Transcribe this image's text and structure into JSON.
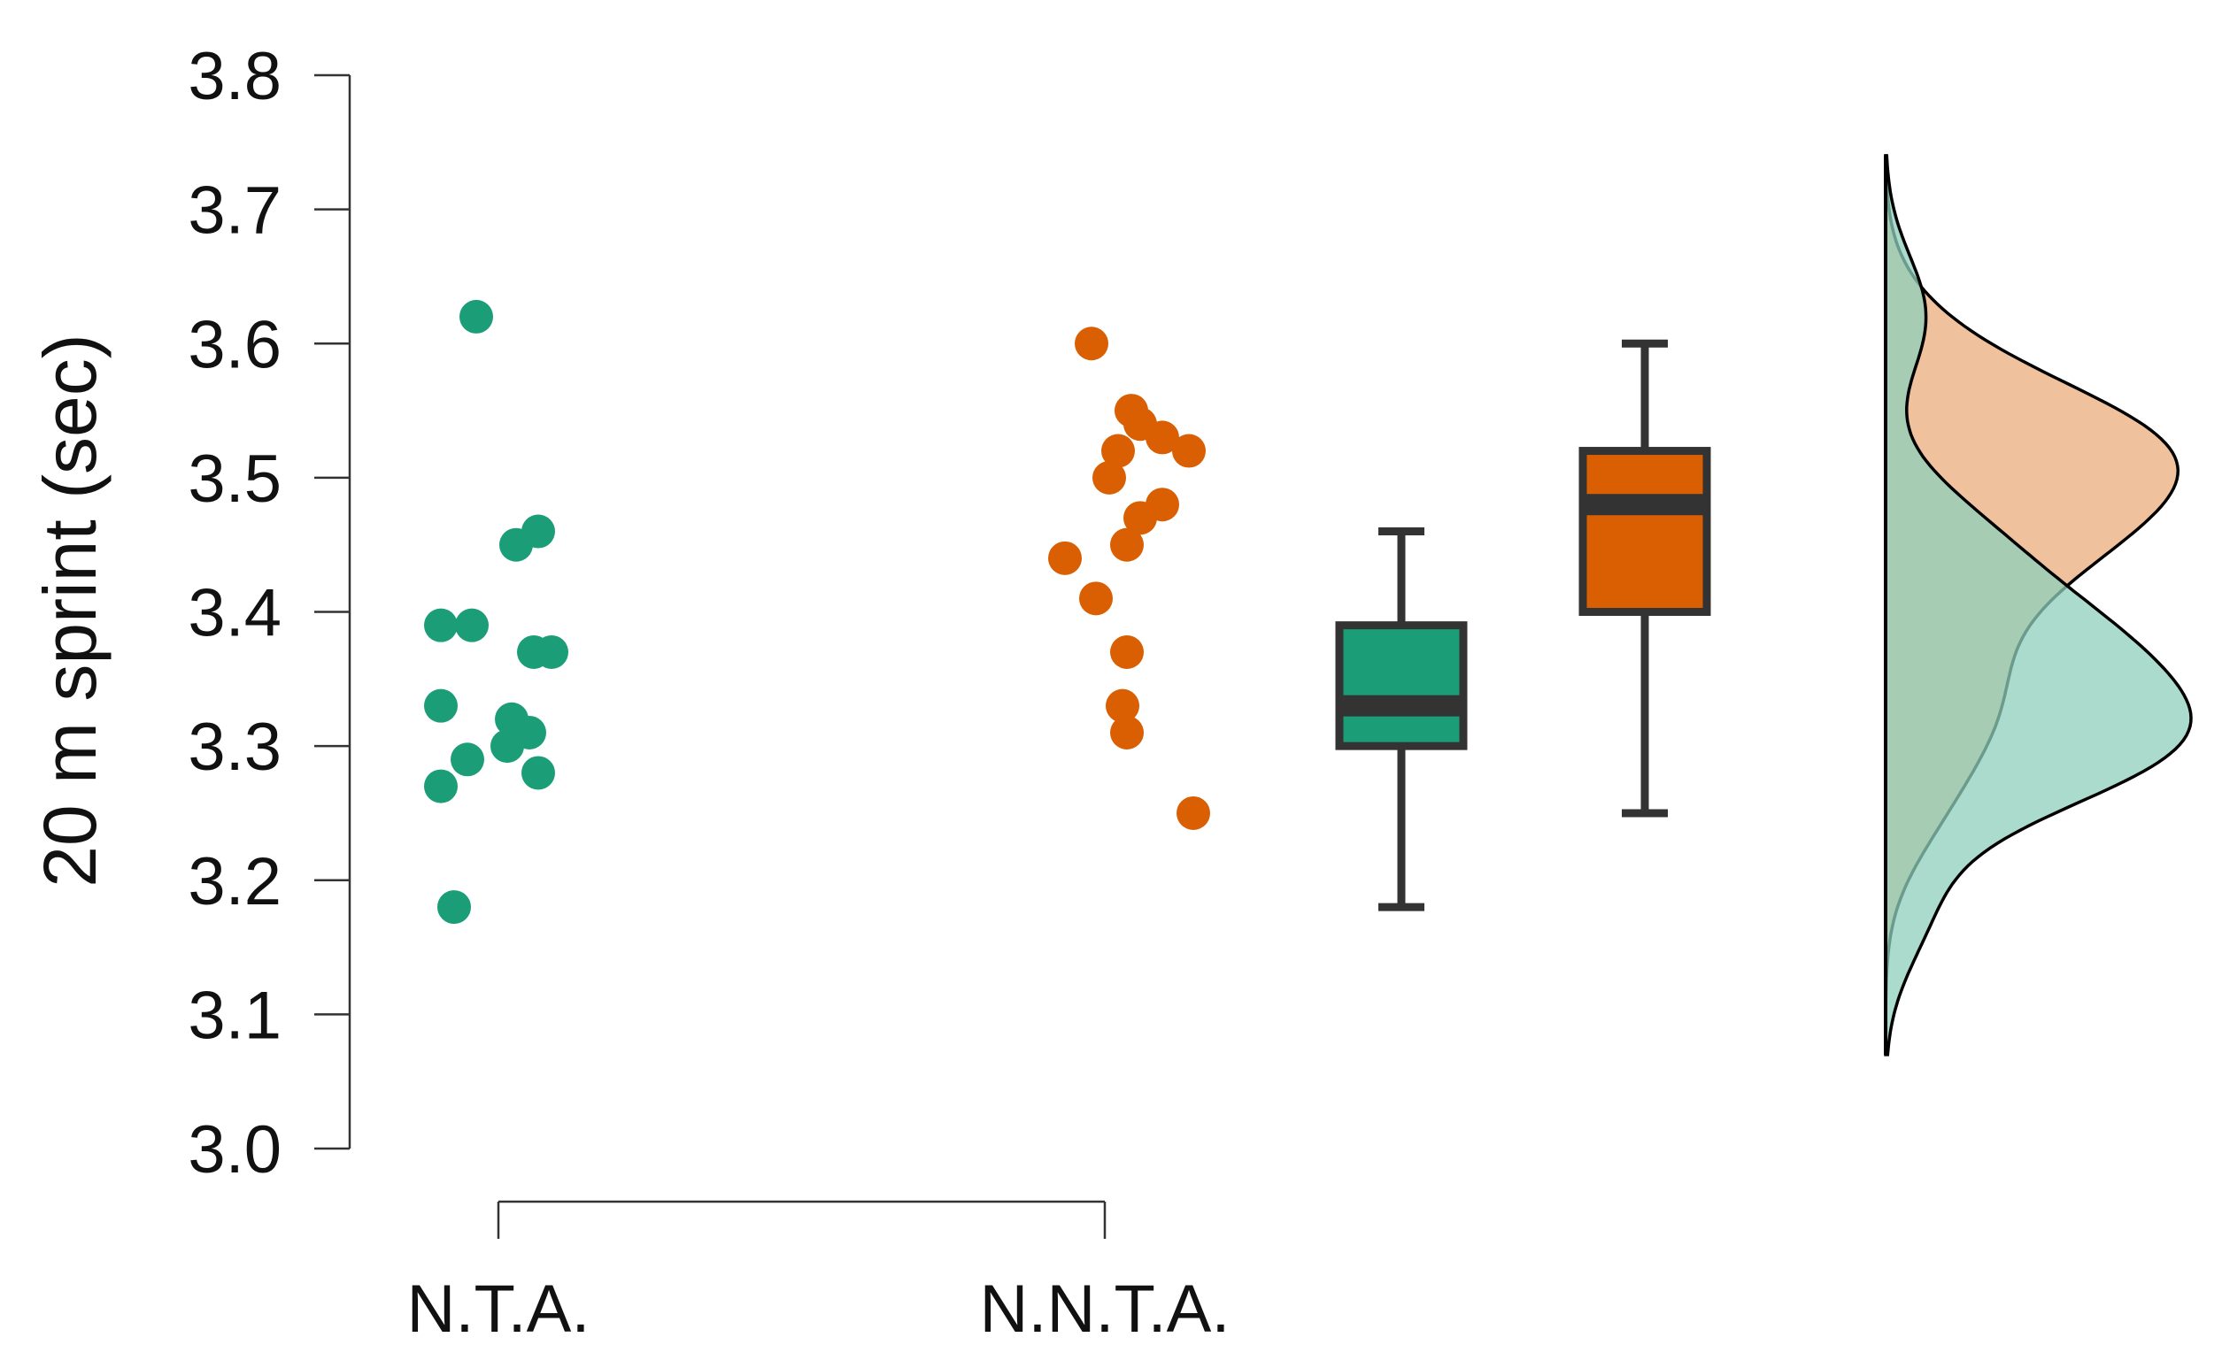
{
  "chart_data": {
    "type": "raincloud",
    "ylabel": "20 m sprint (sec)",
    "xlabel": "",
    "ylim": [
      3.0,
      3.8
    ],
    "yticks": [
      "3.0",
      "3.1",
      "3.2",
      "3.3",
      "3.4",
      "3.5",
      "3.6",
      "3.7",
      "3.8"
    ],
    "categories": [
      "N.T.A.",
      "N.N.T.A."
    ],
    "grid": false,
    "series": [
      {
        "color": "#1b9e77",
        "points": [
          3.62,
          3.46,
          3.45,
          3.39,
          3.39,
          3.37,
          3.37,
          3.33,
          3.32,
          3.31,
          3.3,
          3.29,
          3.28,
          3.27,
          3.18
        ],
        "box": {
          "min": 3.18,
          "q1": 3.3,
          "median": 3.33,
          "q3": 3.39,
          "max": 3.46
        },
        "density_fill": "#8ecfbb"
      },
      {
        "color": "#d95f02",
        "points": [
          3.6,
          3.55,
          3.54,
          3.53,
          3.52,
          3.52,
          3.5,
          3.48,
          3.47,
          3.45,
          3.44,
          3.41,
          3.37,
          3.33,
          3.31,
          3.25
        ],
        "box": {
          "min": 3.25,
          "q1": 3.4,
          "median": 3.48,
          "q3": 3.52,
          "max": 3.6
        },
        "density_fill": "#e9ac7c"
      }
    ]
  }
}
